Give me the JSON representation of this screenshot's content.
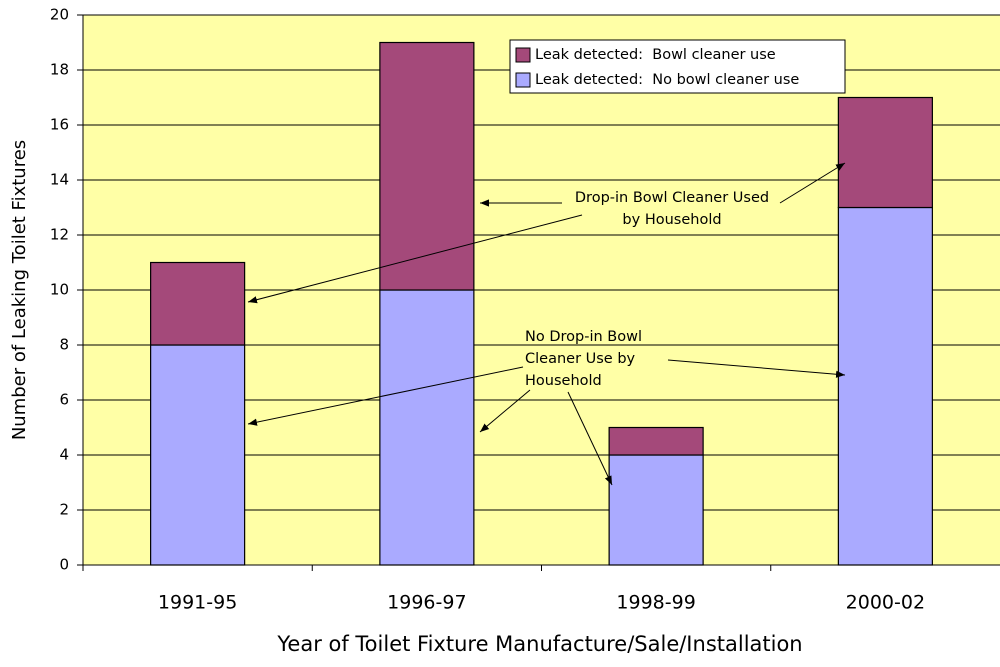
{
  "chart_data": {
    "type": "stacked_bar",
    "xlabel": "Year of Toilet Fixture Manufacture/Sale/Installation",
    "ylabel": "Number of Leaking Toilet Fixtures",
    "categories": [
      "1991-95",
      "1996-97",
      "1998-99",
      "2000-02"
    ],
    "series": [
      {
        "name": "Leak detected:  No bowl cleaner use",
        "color": "#aaaaff",
        "values": [
          8,
          10,
          4,
          13
        ]
      },
      {
        "name": "Leak detected:  Bowl cleaner use",
        "color": "#a4497a",
        "values": [
          3,
          9,
          1,
          4
        ]
      }
    ],
    "ylim": [
      0,
      20
    ],
    "yticks": [
      0,
      2,
      4,
      6,
      8,
      10,
      12,
      14,
      16,
      18,
      20
    ],
    "grid": true,
    "annotations": [
      {
        "lines": [
          "Drop-in Bowl Cleaner Used",
          "by Household"
        ]
      },
      {
        "lines": [
          "No Drop-in Bowl",
          "Cleaner Use by",
          "Household"
        ]
      }
    ]
  }
}
